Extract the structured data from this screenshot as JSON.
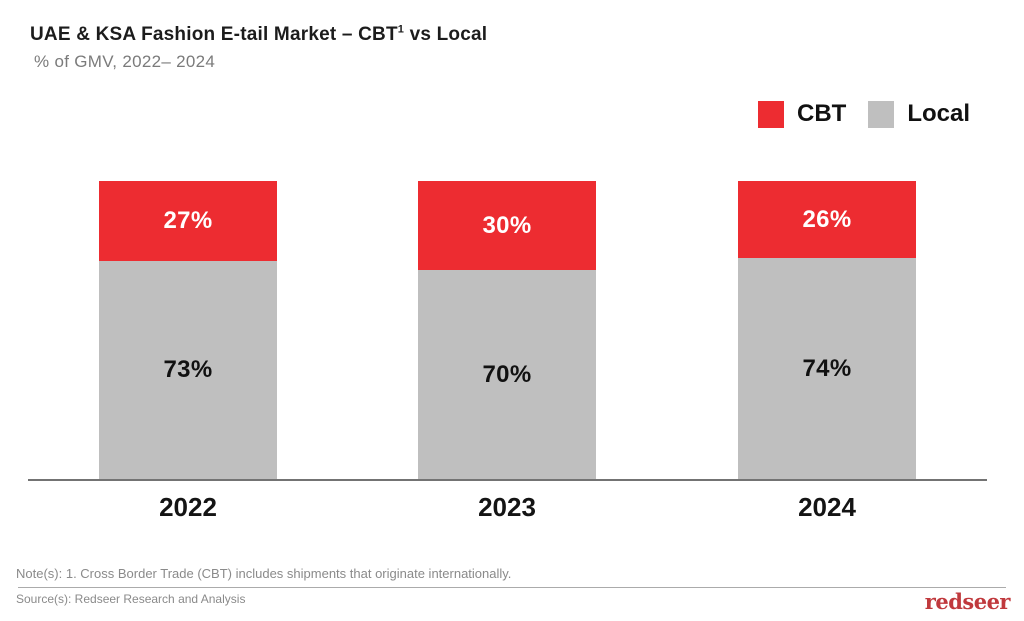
{
  "header": {
    "title_prefix": "UAE & KSA Fashion E-tail Market – CBT",
    "title_superscript": "1",
    "title_suffix": " vs Local",
    "subtitle": "% of GMV, 2022– 2024"
  },
  "legend": {
    "items": [
      {
        "label": "CBT",
        "color": "#ED2C31"
      },
      {
        "label": "Local",
        "color": "#BFBFBF"
      }
    ]
  },
  "chart_data": {
    "type": "bar",
    "stacked": true,
    "title": "UAE & KSA Fashion E-tail Market – CBT vs Local",
    "unit_label": "% of GMV, 2022– 2024",
    "categories": [
      "2022",
      "2023",
      "2024"
    ],
    "series": [
      {
        "name": "CBT",
        "color": "#ED2C31",
        "text_color": "#FFFFFF",
        "values": [
          27,
          30,
          26
        ],
        "labels": [
          "27%",
          "30%",
          "26%"
        ]
      },
      {
        "name": "Local",
        "color": "#BFBFBF",
        "text_color": "#111111",
        "values": [
          73,
          70,
          74
        ],
        "labels": [
          "73%",
          "70%",
          "74%"
        ]
      }
    ],
    "ylim": [
      0,
      100
    ],
    "grid": false,
    "legend_position": "top-right",
    "value_suffix": "%"
  },
  "footer": {
    "note": "Note(s): 1. Cross Border Trade (CBT) includes shipments that originate internationally.",
    "source": "Source(s): Redseer Research and Analysis",
    "logo_text": "redseer"
  },
  "colors": {
    "accent_red": "#ED2C31",
    "bar_gray": "#BFBFBF",
    "axis_line": "#737373",
    "logo_red": "#C0393D"
  }
}
